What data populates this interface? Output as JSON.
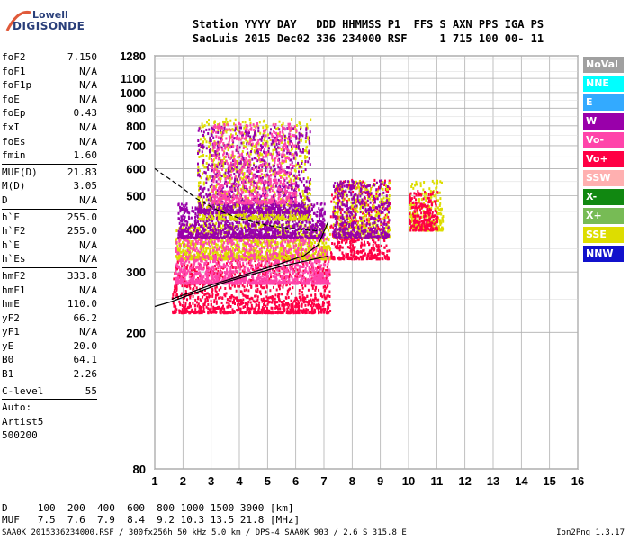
{
  "logo": {
    "line1": "Lowell",
    "line2": "DIGISONDE"
  },
  "header": {
    "line1": "Station YYYY DAY   DDD HHMMSS P1  FFS S AXN PPS IGA PS",
    "line2": "SaoLuis 2015 Dec02 336 234000 RSF     1 715 100 00- 11"
  },
  "params": {
    "group1": [
      {
        "name": "foF2",
        "value": "7.150"
      },
      {
        "name": "foF1",
        "value": "N/A"
      },
      {
        "name": "foF1p",
        "value": "N/A"
      },
      {
        "name": "foE",
        "value": "N/A"
      },
      {
        "name": "foEp",
        "value": "0.43"
      },
      {
        "name": "fxI",
        "value": "N/A"
      },
      {
        "name": "foEs",
        "value": "N/A"
      },
      {
        "name": "fmin",
        "value": "1.60"
      }
    ],
    "group2": [
      {
        "name": "MUF(D)",
        "value": "21.83"
      },
      {
        "name": "M(D)",
        "value": "3.05"
      },
      {
        "name": "D",
        "value": "N/A"
      }
    ],
    "group3": [
      {
        "name": "h`F",
        "value": "255.0"
      },
      {
        "name": "h`F2",
        "value": "255.0"
      },
      {
        "name": "h`E",
        "value": "N/A"
      },
      {
        "name": "h`Es",
        "value": "N/A"
      }
    ],
    "group4": [
      {
        "name": "hmF2",
        "value": "333.8"
      },
      {
        "name": "hmF1",
        "value": "N/A"
      },
      {
        "name": "hmE",
        "value": "110.0"
      },
      {
        "name": "yF2",
        "value": "66.2"
      },
      {
        "name": "yF1",
        "value": "N/A"
      },
      {
        "name": "yE",
        "value": "20.0"
      },
      {
        "name": "B0",
        "value": "64.1"
      },
      {
        "name": "B1",
        "value": "2.26"
      }
    ],
    "group5": [
      {
        "name": "C-level",
        "value": "55"
      }
    ],
    "scaling": [
      "Auto:",
      "Artist5",
      "500200"
    ]
  },
  "legend": [
    {
      "label": "NoVal",
      "color": "#a0a0a0"
    },
    {
      "label": "NNE",
      "color": "#00ffff"
    },
    {
      "label": "E",
      "color": "#33aaff"
    },
    {
      "label": "W",
      "color": "#9900aa"
    },
    {
      "label": "Vo-",
      "color": "#ff44aa"
    },
    {
      "label": "Vo+",
      "color": "#ff0044"
    },
    {
      "label": "SSW",
      "color": "#ffb0b0"
    },
    {
      "label": "X-",
      "color": "#118811"
    },
    {
      "label": "X+",
      "color": "#77bb55"
    },
    {
      "label": "SSE",
      "color": "#dddd00"
    },
    {
      "label": "NNW",
      "color": "#1111cc"
    }
  ],
  "muf_table": {
    "line1": "D     100  200  400  600  800 1000 1500 3000 [km]",
    "line2": "MUF   7.5  7.6  7.9  8.4  9.2 10.3 13.5 21.8 [MHz]"
  },
  "footer": {
    "left": "SAA0K_2015336234000.RSF / 300fx256h 50 kHz 5.0 km / DPS-4 SAA0K 903 / 2.6 S 315.8 E",
    "right": "Ion2Png 1.3.17"
  },
  "chart_data": {
    "type": "scatter",
    "x_ticks": [
      "1",
      "2",
      "3",
      "4",
      "5",
      "6",
      "7",
      "8",
      "9",
      "10",
      "11",
      "12",
      "13",
      "14",
      "15",
      "16"
    ],
    "y_ticks": [
      "80",
      "200",
      "300",
      "400",
      "500",
      "600",
      "700",
      "800",
      "900",
      "1000",
      "1100",
      "1280"
    ],
    "xlim": [
      1,
      16
    ],
    "ylim": [
      80,
      1280
    ],
    "y_scale": "log",
    "grid": true,
    "legend_position": "right",
    "clusters": [
      {
        "x": [
          1.6,
          7.2
        ],
        "y": [
          230,
          340
        ],
        "color": "#ff0044"
      },
      {
        "x": [
          1.7,
          7.2
        ],
        "y": [
          330,
          420
        ],
        "color": "#dddd00"
      },
      {
        "x": [
          1.7,
          7.2
        ],
        "y": [
          280,
          380
        ],
        "color": "#ff44aa"
      },
      {
        "x": [
          1.8,
          7.0
        ],
        "y": [
          380,
          480
        ],
        "color": "#9900aa"
      },
      {
        "x": [
          2.5,
          6.5
        ],
        "y": [
          430,
          850
        ],
        "color": "#dddd00"
      },
      {
        "x": [
          2.5,
          6.5
        ],
        "y": [
          450,
          800
        ],
        "color": "#9900aa"
      },
      {
        "x": [
          3.0,
          6.0
        ],
        "y": [
          480,
          820
        ],
        "color": "#ff44aa"
      },
      {
        "x": [
          7.2,
          9.3
        ],
        "y": [
          330,
          560
        ],
        "color": "#ff0044"
      },
      {
        "x": [
          7.3,
          9.3
        ],
        "y": [
          380,
          560
        ],
        "color": "#dddd00"
      },
      {
        "x": [
          7.3,
          9.3
        ],
        "y": [
          380,
          560
        ],
        "color": "#9900aa"
      },
      {
        "x": [
          10.0,
          11.2
        ],
        "y": [
          400,
          560
        ],
        "color": "#dddd00"
      },
      {
        "x": [
          10.0,
          11.0
        ],
        "y": [
          400,
          520
        ],
        "color": "#ff0044"
      }
    ],
    "curves": [
      {
        "name": "virtual-height",
        "x": [
          1.0,
          1.6,
          2.5,
          3.5,
          4.5,
          5.5,
          6.5,
          7.15
        ],
        "y": [
          238,
          246,
          262,
          280,
          296,
          312,
          325,
          334
        ]
      },
      {
        "name": "profile",
        "x": [
          1.6,
          3.0,
          4.5,
          5.5,
          6.3,
          6.8,
          7.15
        ],
        "y": [
          250,
          275,
          300,
          318,
          335,
          360,
          420
        ]
      },
      {
        "name": "dashed",
        "x": [
          1.0,
          1.8,
          2.5,
          3.2,
          4.0,
          5.0,
          6.0,
          6.8
        ],
        "y": [
          600,
          540,
          490,
          455,
          430,
          410,
          400,
          395
        ]
      }
    ]
  }
}
